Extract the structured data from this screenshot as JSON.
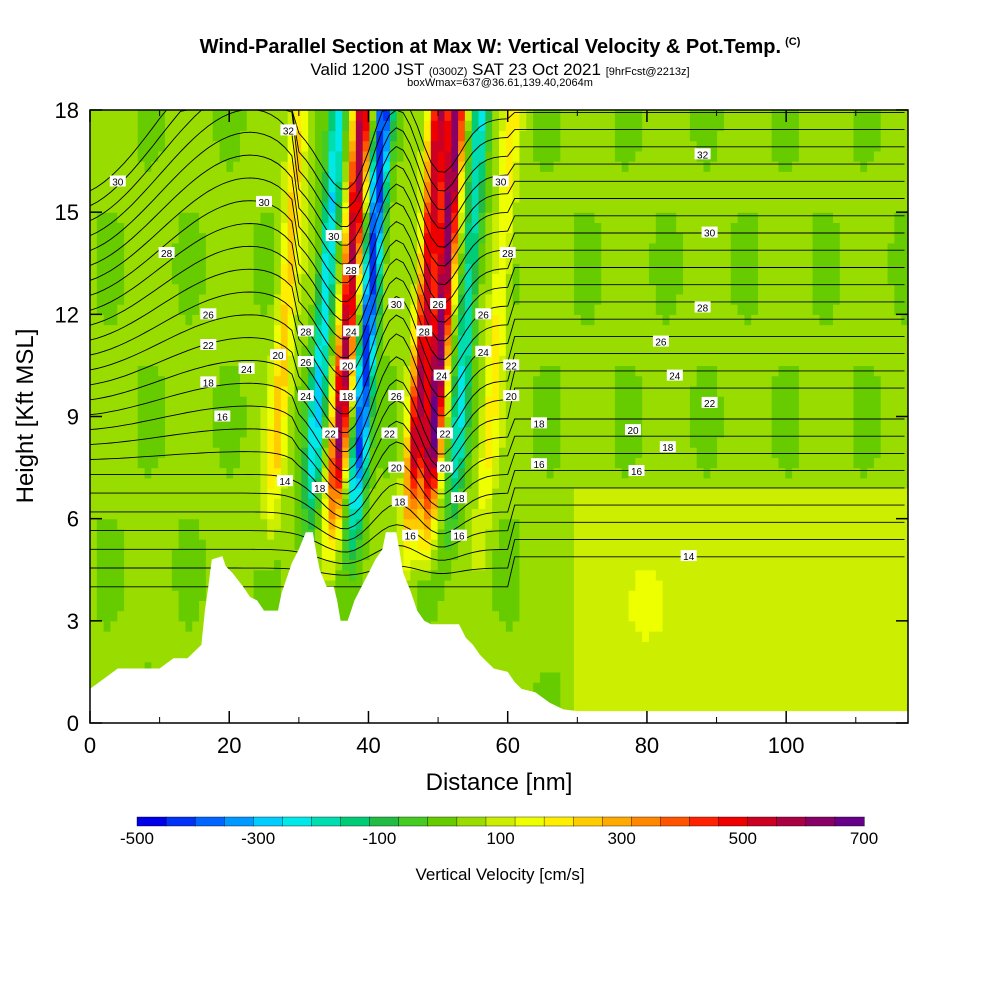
{
  "header": {
    "title": "Wind-Parallel Section at Max W: Vertical Velocity & Pot.Temp.",
    "copyright": "(C)",
    "valid_prefix": "Valid 1200 JST",
    "valid_zulu": "(0300Z)",
    "valid_suffix": "SAT 23 Oct 2021",
    "forecast_tag": "[9hrFcst@2213z]",
    "box_info": "boxWmax=637@36.61,139.40,2064m"
  },
  "chart_data": {
    "type": "heatmap",
    "title": "Wind-Parallel Section at Max W: Vertical Velocity & Pot.Temp.",
    "xlabel": "Distance [nm]",
    "ylabel": "Height [Kft MSL]",
    "xlim": [
      0,
      117.5
    ],
    "ylim": [
      0,
      18
    ],
    "x_ticks": [
      0,
      20,
      40,
      60,
      80,
      100
    ],
    "y_ticks": [
      0,
      3,
      6,
      9,
      12,
      15,
      18
    ],
    "colorbar": {
      "label": "Vertical Velocity [cm/s]",
      "ticks": [
        -500,
        -300,
        -100,
        100,
        300,
        500,
        700
      ],
      "min": -500,
      "max": 700,
      "colors": [
        "#0000e8",
        "#0033f5",
        "#0066ff",
        "#0099ff",
        "#00ccff",
        "#00e8e8",
        "#00ddb0",
        "#00cc77",
        "#22bb44",
        "#44cc22",
        "#66cc00",
        "#99dd00",
        "#ccee00",
        "#eeff00",
        "#ffee00",
        "#ffcc00",
        "#ffaa00",
        "#ff8800",
        "#ff5500",
        "#ff2200",
        "#ee0000",
        "#cc0022",
        "#aa0044",
        "#880066",
        "#660088"
      ]
    },
    "updraft_bands": [
      {
        "x": 35.0,
        "w": 550
      },
      {
        "x": 38.0,
        "w": -480
      },
      {
        "x": 46.0,
        "w": 500
      },
      {
        "x": 48.5,
        "w": 600
      },
      {
        "x": 52.0,
        "w": -250
      },
      {
        "x": 26.0,
        "w": 200
      },
      {
        "x": 31.5,
        "w": -300
      },
      {
        "x": 56.5,
        "w": 150
      }
    ],
    "terrain_kft": [
      [
        0,
        1.0
      ],
      [
        2,
        1.3
      ],
      [
        4,
        1.6
      ],
      [
        10,
        1.6
      ],
      [
        12,
        1.9
      ],
      [
        14,
        1.9
      ],
      [
        16,
        2.3
      ],
      [
        16.5,
        3.3
      ],
      [
        17,
        4.0
      ],
      [
        17.5,
        4.8
      ],
      [
        19,
        4.9
      ],
      [
        19.5,
        4.6
      ],
      [
        20.5,
        4.4
      ],
      [
        22,
        4.0
      ],
      [
        23,
        3.7
      ],
      [
        24,
        3.6
      ],
      [
        25,
        3.3
      ],
      [
        27,
        3.3
      ],
      [
        27.5,
        3.8
      ],
      [
        28,
        4.1
      ],
      [
        28.5,
        4.4
      ],
      [
        29,
        4.7
      ],
      [
        30,
        5.1
      ],
      [
        31,
        5.6
      ],
      [
        32,
        5.6
      ],
      [
        32.5,
        5.0
      ],
      [
        33,
        4.5
      ],
      [
        34,
        4.0
      ],
      [
        35,
        4.0
      ],
      [
        35.5,
        3.6
      ],
      [
        36,
        3.0
      ],
      [
        37,
        3.0
      ],
      [
        37.5,
        3.3
      ],
      [
        38,
        3.6
      ],
      [
        39,
        4.0
      ],
      [
        40,
        4.4
      ],
      [
        41,
        4.8
      ],
      [
        42,
        5.1
      ],
      [
        42.5,
        5.6
      ],
      [
        44,
        5.6
      ],
      [
        44.5,
        5.0
      ],
      [
        45,
        4.4
      ],
      [
        46,
        3.9
      ],
      [
        47,
        3.3
      ],
      [
        48,
        3.0
      ],
      [
        49,
        2.9
      ],
      [
        53,
        2.9
      ],
      [
        54,
        2.5
      ],
      [
        55,
        2.3
      ],
      [
        56,
        2.0
      ],
      [
        57,
        1.8
      ],
      [
        58,
        1.6
      ],
      [
        60,
        1.5
      ],
      [
        61,
        1.2
      ],
      [
        62,
        1.0
      ],
      [
        64,
        0.9
      ],
      [
        66,
        0.6
      ],
      [
        68,
        0.4
      ],
      [
        70,
        0.35
      ],
      [
        80,
        0.35
      ],
      [
        100,
        0.35
      ],
      [
        117.5,
        0.35
      ]
    ],
    "theta_labels": [
      {
        "x": 4,
        "y": 15.9,
        "t": "30"
      },
      {
        "x": 11,
        "y": 13.8,
        "t": "28"
      },
      {
        "x": 17,
        "y": 12.0,
        "t": "26"
      },
      {
        "x": 17,
        "y": 11.1,
        "t": "22"
      },
      {
        "x": 17,
        "y": 10.0,
        "t": "18"
      },
      {
        "x": 19,
        "y": 9.0,
        "t": "16"
      },
      {
        "x": 22.5,
        "y": 10.4,
        "t": "24"
      },
      {
        "x": 27,
        "y": 10.8,
        "t": "20"
      },
      {
        "x": 28,
        "y": 7.1,
        "t": "14"
      },
      {
        "x": 28.5,
        "y": 17.4,
        "t": "32"
      },
      {
        "x": 25,
        "y": 15.3,
        "t": "30"
      },
      {
        "x": 31,
        "y": 11.5,
        "t": "28"
      },
      {
        "x": 31,
        "y": 10.6,
        "t": "26"
      },
      {
        "x": 31,
        "y": 9.6,
        "t": "24"
      },
      {
        "x": 34.5,
        "y": 8.5,
        "t": "22"
      },
      {
        "x": 33,
        "y": 6.9,
        "t": "18"
      },
      {
        "x": 35,
        "y": 14.3,
        "t": "30"
      },
      {
        "x": 37.5,
        "y": 13.3,
        "t": "28"
      },
      {
        "x": 37.5,
        "y": 11.5,
        "t": "24"
      },
      {
        "x": 37,
        "y": 10.5,
        "t": "20"
      },
      {
        "x": 37,
        "y": 9.6,
        "t": "18"
      },
      {
        "x": 44,
        "y": 12.3,
        "t": "30"
      },
      {
        "x": 44,
        "y": 9.6,
        "t": "26"
      },
      {
        "x": 43,
        "y": 8.5,
        "t": "22"
      },
      {
        "x": 44,
        "y": 7.5,
        "t": "20"
      },
      {
        "x": 44.5,
        "y": 6.5,
        "t": "18"
      },
      {
        "x": 46,
        "y": 5.5,
        "t": "16"
      },
      {
        "x": 48,
        "y": 11.5,
        "t": "28"
      },
      {
        "x": 50,
        "y": 12.3,
        "t": "26"
      },
      {
        "x": 50.5,
        "y": 10.2,
        "t": "24"
      },
      {
        "x": 51,
        "y": 8.5,
        "t": "22"
      },
      {
        "x": 51,
        "y": 7.5,
        "t": "20"
      },
      {
        "x": 53,
        "y": 6.6,
        "t": "18"
      },
      {
        "x": 53,
        "y": 5.5,
        "t": "16"
      },
      {
        "x": 59,
        "y": 15.9,
        "t": "30"
      },
      {
        "x": 60,
        "y": 13.8,
        "t": "28"
      },
      {
        "x": 56.5,
        "y": 12.0,
        "t": "26"
      },
      {
        "x": 56.5,
        "y": 10.9,
        "t": "24"
      },
      {
        "x": 60.5,
        "y": 10.5,
        "t": "22"
      },
      {
        "x": 60.5,
        "y": 9.6,
        "t": "20"
      },
      {
        "x": 64.5,
        "y": 8.8,
        "t": "18"
      },
      {
        "x": 64.5,
        "y": 7.6,
        "t": "16"
      },
      {
        "x": 88,
        "y": 16.7,
        "t": "32"
      },
      {
        "x": 89,
        "y": 14.4,
        "t": "30"
      },
      {
        "x": 88,
        "y": 12.2,
        "t": "28"
      },
      {
        "x": 82,
        "y": 11.2,
        "t": "26"
      },
      {
        "x": 84,
        "y": 10.2,
        "t": "24"
      },
      {
        "x": 89,
        "y": 9.4,
        "t": "22"
      },
      {
        "x": 78,
        "y": 8.6,
        "t": "20"
      },
      {
        "x": 83,
        "y": 8.1,
        "t": "18"
      },
      {
        "x": 78.5,
        "y": 7.4,
        "t": "16"
      },
      {
        "x": 86,
        "y": 4.9,
        "t": "14"
      }
    ]
  }
}
